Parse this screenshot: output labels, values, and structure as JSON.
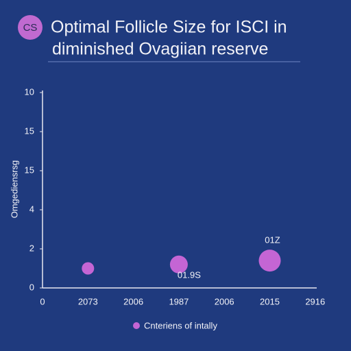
{
  "chart_data": {
    "type": "scatter",
    "badge": "CS",
    "title": "Optimal Follicle Size for ISCI in",
    "subtitle": "diminished Ovagiian reserve",
    "y_label": "Omgediensrsg",
    "categories": [
      "0",
      "2073",
      "2006",
      "1987",
      "2006",
      "2015",
      "2916"
    ],
    "ylim": [
      0,
      5.1
    ],
    "yticks": [
      {
        "value": 0,
        "label": "0"
      },
      {
        "value": 1,
        "label": "2"
      },
      {
        "value": 2,
        "label": "4"
      },
      {
        "value": 3,
        "label": "15"
      },
      {
        "value": 4,
        "label": "15"
      },
      {
        "value": 5,
        "label": "10"
      }
    ],
    "series": [
      {
        "name": "Cnteriens of intally",
        "color": "#c465d4",
        "values": [
          null,
          0.5,
          null,
          0.6,
          null,
          0.7,
          null
        ],
        "sizes": [
          null,
          9,
          null,
          13,
          null,
          16,
          null
        ]
      }
    ],
    "annotations": [
      "01Z",
      "01.9S"
    ],
    "grid": false
  }
}
